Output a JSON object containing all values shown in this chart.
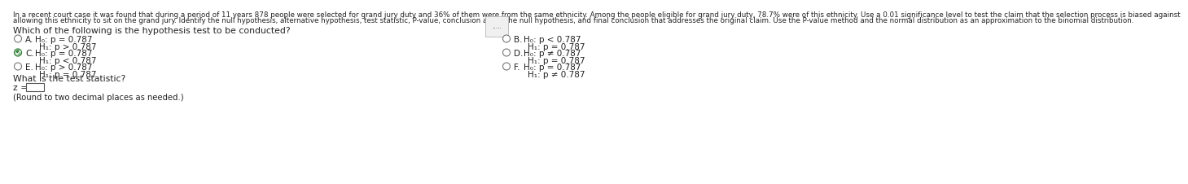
{
  "bg_color": "#ffffff",
  "header_line1": "In a recent court case it was found that during a period of 11 years 878 people were selected for grand jury duty and 36% of them were from the same ethnicity. Among the people eligible for grand jury duty, 78.7% were of this ethnicity. Use a 0.01 significance level to test the claim that the selection process is biased against",
  "header_line2": "allowing this ethnicity to sit on the grand jury. Identify the null hypothesis, alternative hypothesis, test statistic, P-value, conclusion about the null hypothesis, and final conclusion that addresses the original claim. Use the P-value method and the normal distribution as an approximation to the binomial distribution.",
  "dots_text": ".....",
  "question_text": "Which of the following is the hypothesis test to be conducted?",
  "left_options": [
    {
      "label": "A.",
      "h0": "H₀: p = 0.787",
      "h1": "H₁: p > 0.787",
      "selected": false
    },
    {
      "label": "C.",
      "h0": "H₀: p = 0.787",
      "h1": "H₁: p < 0.787",
      "selected": true
    },
    {
      "label": "E.",
      "h0": "H₀: p > 0.787",
      "h1": "H₁: p = 0.787",
      "selected": false
    }
  ],
  "right_options": [
    {
      "label": "B.",
      "h0": "H₀: p < 0.787",
      "h1": "H₁: p = 0.787",
      "selected": false
    },
    {
      "label": "D.",
      "h0": "H₀: p ≠ 0.787",
      "h1": "H₁: p = 0.787",
      "selected": false
    },
    {
      "label": "F.",
      "h0": "H₀: p = 0.787",
      "h1": "H₁: p ≠ 0.787",
      "selected": false
    }
  ],
  "test_stat_label": "What is the test statistic?",
  "z_label": "z =",
  "round_note": "(Round to two decimal places as needed.)",
  "header_fontsize": 6.3,
  "question_fontsize": 7.8,
  "option_fontsize": 7.5,
  "body_fontsize": 7.8,
  "small_fontsize": 7.2,
  "text_color": "#222222",
  "radio_color": "#777777",
  "selected_color": "#2e7d32"
}
